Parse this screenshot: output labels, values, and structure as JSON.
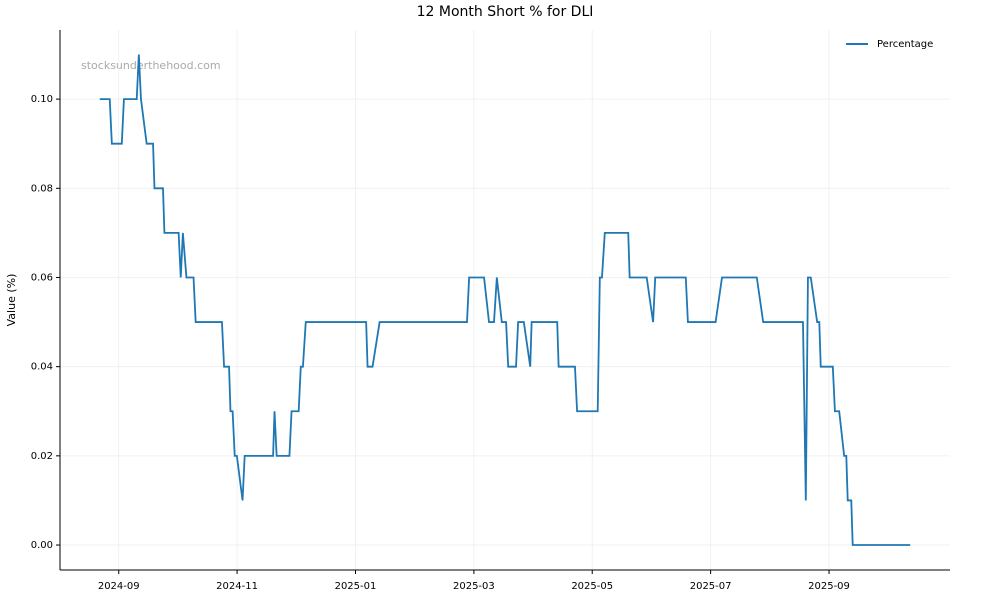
{
  "chart_data": {
    "type": "line",
    "title": "12 Month Short % for DLI",
    "ylabel": "Value (%)",
    "watermark": "stocksunderthehood.com",
    "x": [
      2024.64,
      2024.654,
      2024.657,
      2024.671,
      2024.674,
      2024.692,
      2024.695,
      2024.698,
      2024.706,
      2024.715,
      2024.717,
      2024.729,
      2024.731,
      2024.751,
      2024.754,
      2024.757,
      2024.762,
      2024.772,
      2024.775,
      2024.812,
      2024.815,
      2024.822,
      2024.824,
      2024.827,
      2024.83,
      2024.833,
      2024.841,
      2024.844,
      2024.884,
      2024.886,
      2024.889,
      2024.907,
      2024.91,
      2024.92,
      2024.923,
      2024.926,
      2024.93,
      2025.015,
      2025.017,
      2025.024,
      2025.034,
      2025.157,
      2025.16,
      2025.181,
      2025.188,
      2025.195,
      2025.199,
      2025.206,
      2025.212,
      2025.215,
      2025.226,
      2025.229,
      2025.237,
      2025.246,
      2025.248,
      2025.284,
      2025.286,
      2025.309,
      2025.312,
      2025.341,
      2025.344,
      2025.347,
      2025.351,
      2025.384,
      2025.386,
      2025.41,
      2025.419,
      2025.422,
      2025.465,
      2025.468,
      2025.507,
      2025.516,
      2025.565,
      2025.574,
      2025.63,
      2025.634,
      2025.637,
      2025.641,
      2025.65,
      2025.653,
      2025.655,
      2025.672,
      2025.675,
      2025.681,
      2025.688,
      2025.691,
      2025.693,
      2025.698,
      2025.7,
      2025.781
    ],
    "series": [
      {
        "name": "Percentage",
        "color": "#1f77b4",
        "values": [
          0.1,
          0.1,
          0.09,
          0.09,
          0.1,
          0.1,
          0.11,
          0.1,
          0.09,
          0.09,
          0.08,
          0.08,
          0.07,
          0.07,
          0.06,
          0.07,
          0.06,
          0.06,
          0.05,
          0.05,
          0.04,
          0.04,
          0.03,
          0.03,
          0.02,
          0.02,
          0.01,
          0.02,
          0.02,
          0.03,
          0.02,
          0.02,
          0.03,
          0.03,
          0.04,
          0.04,
          0.05,
          0.05,
          0.04,
          0.04,
          0.05,
          0.05,
          0.06,
          0.06,
          0.05,
          0.05,
          0.06,
          0.05,
          0.05,
          0.04,
          0.04,
          0.05,
          0.05,
          0.04,
          0.05,
          0.05,
          0.04,
          0.04,
          0.03,
          0.03,
          0.06,
          0.06,
          0.07,
          0.07,
          0.06,
          0.06,
          0.05,
          0.06,
          0.06,
          0.05,
          0.05,
          0.06,
          0.06,
          0.05,
          0.05,
          0.01,
          0.06,
          0.06,
          0.05,
          0.05,
          0.04,
          0.04,
          0.03,
          0.03,
          0.02,
          0.02,
          0.01,
          0.01,
          0.0,
          0.0
        ]
      }
    ],
    "xlim": [
      2024.584,
      2025.837
    ],
    "xticks": [
      {
        "value": 2024.6667,
        "label": "2024-09"
      },
      {
        "value": 2024.8333,
        "label": "2024-11"
      },
      {
        "value": 2025.0,
        "label": "2025-01"
      },
      {
        "value": 2025.1667,
        "label": "2025-03"
      },
      {
        "value": 2025.3333,
        "label": "2025-05"
      },
      {
        "value": 2025.5,
        "label": "2025-07"
      },
      {
        "value": 2025.6667,
        "label": "2025-09"
      }
    ],
    "ylim": [
      -0.0056,
      0.1155
    ],
    "yticks": [
      {
        "value": 0,
        "label": "0.00"
      },
      {
        "value": 0.02,
        "label": "0.02"
      },
      {
        "value": 0.04,
        "label": "0.04"
      },
      {
        "value": 0.06,
        "label": "0.06"
      },
      {
        "value": 0.08,
        "label": "0.08"
      },
      {
        "value": 0.1,
        "label": "0.10"
      }
    ],
    "grid": true,
    "legend": "upper right"
  }
}
